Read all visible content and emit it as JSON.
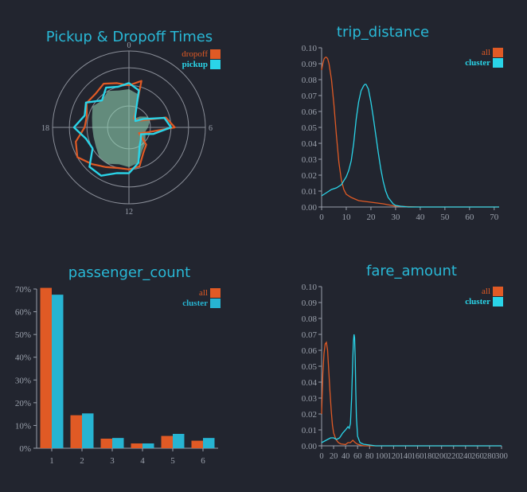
{
  "colors": {
    "all": "#e05a25",
    "cluster": "#2ad4e8",
    "bar_cluster": "#27b4d2",
    "title": "#29b8d6",
    "axis": "#9aa0ab",
    "grid": "#8a8e98",
    "fill": "#8fd0b0"
  },
  "chart_data": [
    {
      "type": "radar",
      "title": "Pickup & Dropoff Times",
      "angular_ticks": [
        "0",
        "6",
        "12",
        "18"
      ],
      "radius_max": 1.0,
      "rings": [
        0.28,
        0.55,
        0.78,
        1.0
      ],
      "legend": [
        "dropoff",
        "pickup"
      ],
      "legend_position": "top-right",
      "hours": [
        0,
        1,
        2,
        3,
        4,
        5,
        6,
        7,
        8,
        9,
        10,
        11,
        12,
        13,
        14,
        15,
        16,
        17,
        18,
        19,
        20,
        21,
        22,
        23
      ],
      "series": [
        {
          "name": "dropoff",
          "values": [
            0.55,
            0.63,
            0.13,
            0.15,
            0.18,
            0.5,
            0.6,
            0.25,
            0.15,
            0.32,
            0.38,
            0.53,
            0.55,
            0.55,
            0.6,
            0.68,
            0.78,
            0.72,
            0.58,
            0.57,
            0.64,
            0.62,
            0.66,
            0.6
          ]
        },
        {
          "name": "pickup",
          "values": [
            0.58,
            0.5,
            0.16,
            0.12,
            0.22,
            0.48,
            0.55,
            0.33,
            0.18,
            0.22,
            0.28,
            0.48,
            0.6,
            0.62,
            0.73,
            0.73,
            0.55,
            0.58,
            0.72,
            0.6,
            0.65,
            0.5,
            0.6,
            0.55
          ]
        }
      ],
      "cluster_fill": {
        "values": [
          0.5,
          0.45,
          0.13,
          0.2,
          0.28,
          0.28,
          0.25,
          0.22,
          0.25,
          0.3,
          0.35,
          0.48,
          0.52,
          0.5,
          0.55,
          0.55,
          0.5,
          0.48,
          0.48,
          0.5,
          0.55,
          0.5,
          0.55,
          0.5
        ]
      }
    },
    {
      "type": "line",
      "title": "trip_distance",
      "xlim": [
        0,
        72
      ],
      "ylim": [
        0,
        0.1
      ],
      "xticks": [
        0,
        10,
        20,
        30,
        40,
        50,
        60,
        70
      ],
      "yticks": [
        0,
        0.01,
        0.02,
        0.03,
        0.04,
        0.05,
        0.06,
        0.07,
        0.08,
        0.09,
        0.1
      ],
      "legend": [
        "all",
        "cluster"
      ],
      "legend_position": "top-right",
      "series": [
        {
          "name": "all",
          "x": [
            0,
            0.5,
            1,
            1.5,
            2,
            2.5,
            3,
            4,
            5,
            6,
            7,
            8,
            9,
            10,
            12,
            15,
            20,
            25,
            30,
            40,
            72
          ],
          "y": [
            0.086,
            0.09,
            0.093,
            0.094,
            0.094,
            0.093,
            0.09,
            0.08,
            0.064,
            0.045,
            0.028,
            0.017,
            0.011,
            0.008,
            0.006,
            0.004,
            0.003,
            0.002,
            0.0005,
            0,
            0
          ]
        },
        {
          "name": "cluster",
          "x": [
            0,
            2,
            4,
            6,
            8,
            10,
            11,
            12,
            13,
            14,
            15,
            16,
            17,
            17.5,
            18,
            19,
            20,
            21,
            22,
            23,
            24,
            25,
            26,
            27,
            28,
            29,
            30,
            32,
            35,
            40,
            72
          ],
          "y": [
            0.007,
            0.009,
            0.011,
            0.012,
            0.014,
            0.019,
            0.023,
            0.029,
            0.04,
            0.055,
            0.066,
            0.073,
            0.076,
            0.077,
            0.077,
            0.074,
            0.066,
            0.056,
            0.045,
            0.034,
            0.024,
            0.016,
            0.01,
            0.006,
            0.004,
            0.002,
            0.001,
            0.0005,
            0,
            0,
            0
          ]
        }
      ]
    },
    {
      "type": "bar",
      "title": "passenger_count",
      "categories": [
        "1",
        "2",
        "3",
        "4",
        "5",
        "6"
      ],
      "ylim": [
        0,
        70
      ],
      "yticks": [
        "0%",
        "10%",
        "20%",
        "30%",
        "40%",
        "50%",
        "60%",
        "70%"
      ],
      "legend": [
        "all",
        "cluster"
      ],
      "legend_position": "top-right",
      "series": [
        {
          "name": "all",
          "values": [
            70.5,
            14.5,
            4.2,
            2.1,
            5.4,
            3.3
          ]
        },
        {
          "name": "cluster",
          "values": [
            67.5,
            15.3,
            4.5,
            2.1,
            6.3,
            4.5
          ]
        }
      ]
    },
    {
      "type": "line",
      "title": "fare_amount",
      "xlim": [
        0,
        300
      ],
      "ylim": [
        0,
        0.1
      ],
      "xticks": [
        0,
        20,
        40,
        60,
        80,
        100,
        120,
        140,
        160,
        180,
        200,
        220,
        240,
        260,
        280,
        300
      ],
      "yticks": [
        0,
        0.01,
        0.02,
        0.03,
        0.04,
        0.05,
        0.06,
        0.07,
        0.08,
        0.09,
        0.1
      ],
      "legend": [
        "all",
        "cluster"
      ],
      "legend_position": "top-right",
      "series": [
        {
          "name": "all",
          "x": [
            0,
            2,
            4,
            6,
            8,
            10,
            12,
            14,
            16,
            18,
            20,
            24,
            28,
            32,
            36,
            40,
            44,
            48,
            52,
            56,
            60,
            70,
            300
          ],
          "y": [
            0.02,
            0.045,
            0.058,
            0.064,
            0.065,
            0.06,
            0.047,
            0.034,
            0.022,
            0.013,
            0.008,
            0.004,
            0.002,
            0.0012,
            0.001,
            0.0008,
            0.002,
            0.002,
            0.0035,
            0.002,
            0.001,
            0,
            0
          ]
        },
        {
          "name": "cluster",
          "x": [
            0,
            5,
            10,
            15,
            20,
            25,
            30,
            35,
            40,
            44,
            46,
            48,
            50,
            52,
            53,
            54,
            55,
            56,
            57,
            58,
            60,
            64,
            70,
            80,
            90,
            300
          ],
          "y": [
            0.002,
            0.003,
            0.004,
            0.005,
            0.005,
            0.004,
            0.005,
            0.008,
            0.01,
            0.012,
            0.011,
            0.014,
            0.03,
            0.055,
            0.065,
            0.07,
            0.068,
            0.055,
            0.035,
            0.018,
            0.006,
            0.002,
            0.001,
            0.0005,
            0,
            0
          ]
        }
      ]
    }
  ]
}
